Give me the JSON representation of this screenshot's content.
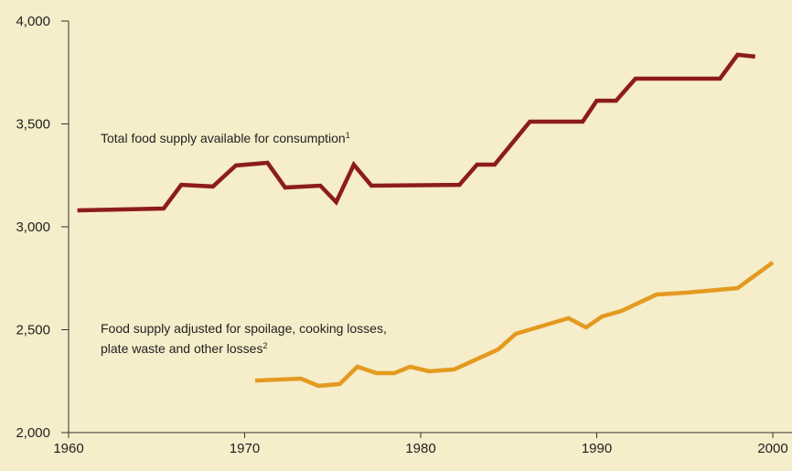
{
  "chart_data": {
    "type": "line",
    "xlim": [
      1960,
      2000
    ],
    "xticks": [
      1960,
      1970,
      1980,
      1990,
      2000
    ],
    "ylim": [
      2000,
      4000
    ],
    "yticks": [
      {
        "value": 2000,
        "label": "2,000"
      },
      {
        "value": 2500,
        "label": "2,500"
      },
      {
        "value": 3000,
        "label": "3,000"
      },
      {
        "value": 3500,
        "label": "3,500"
      },
      {
        "value": 4000,
        "label": "4,000"
      }
    ],
    "series": [
      {
        "name": "Total food supply available for consumption",
        "footnote": "1",
        "color": "#8c1c1c",
        "x": [
          1960.5,
          1965.4,
          1966.4,
          1968.2,
          1969.5,
          1971.3,
          1972.3,
          1974.3,
          1975.2,
          1976.2,
          1977.2,
          1982.2,
          1983.2,
          1984.2,
          1986.2,
          1989.2,
          1990.0,
          1991.1,
          1992.2,
          1997.0,
          1998.0,
          1999.0
        ],
        "values": [
          3080,
          3089,
          3204,
          3196,
          3298,
          3311,
          3191,
          3200,
          3120,
          3302,
          3200,
          3204,
          3302,
          3302,
          3511,
          3511,
          3613,
          3613,
          3720,
          3720,
          3836,
          3827
        ]
      },
      {
        "name": "Food supply adjusted for spoilage, cooking losses,",
        "name_line2": "plate waste and other losses",
        "footnote": "2",
        "color": "#e39a1f",
        "x": [
          1970.6,
          1973.2,
          1974.2,
          1975.4,
          1976.4,
          1977.5,
          1978.5,
          1979.4,
          1980.5,
          1981.9,
          1984.4,
          1985.4,
          1988.4,
          1989.4,
          1990.3,
          1991.4,
          1993.4,
          1995.1,
          1998.0,
          2000.0
        ],
        "values": [
          2253,
          2262,
          2227,
          2236,
          2320,
          2289,
          2289,
          2320,
          2298,
          2307,
          2404,
          2480,
          2556,
          2511,
          2564,
          2591,
          2671,
          2680,
          2702,
          2827
        ]
      }
    ]
  }
}
